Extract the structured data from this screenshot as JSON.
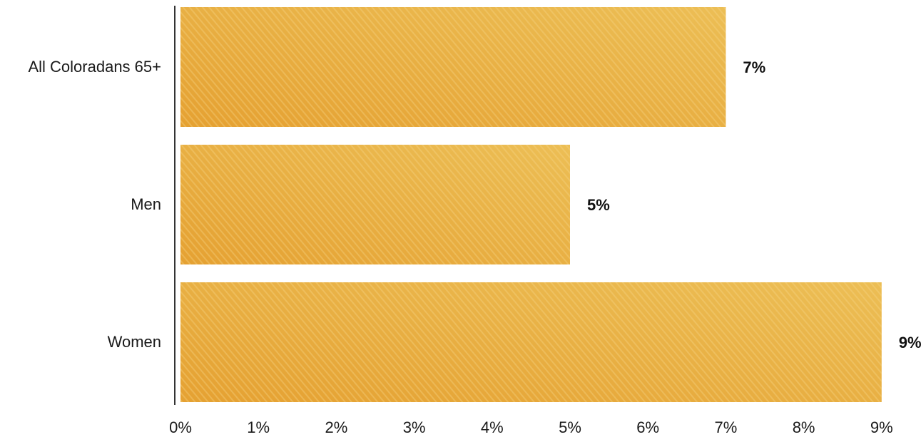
{
  "chart_data": {
    "type": "bar",
    "orientation": "horizontal",
    "categories": [
      "All Coloradans 65+",
      "Men",
      "Women"
    ],
    "values": [
      7,
      5,
      9
    ],
    "value_labels": [
      "7%",
      "5%",
      "9%"
    ],
    "title": "",
    "xlabel": "",
    "ylabel": "",
    "xlim": [
      0,
      9
    ],
    "x_ticks": [
      0,
      1,
      2,
      3,
      4,
      5,
      6,
      7,
      8,
      9
    ],
    "x_tick_labels": [
      "0%",
      "1%",
      "2%",
      "3%",
      "4%",
      "5%",
      "6%",
      "7%",
      "8%",
      "9%"
    ],
    "grid": false,
    "legend": "none",
    "colors": {
      "bar_light": "#ecbe55",
      "bar_dark": "#e5a132",
      "stripe": "#f6d68a",
      "axis": "#333333"
    }
  }
}
